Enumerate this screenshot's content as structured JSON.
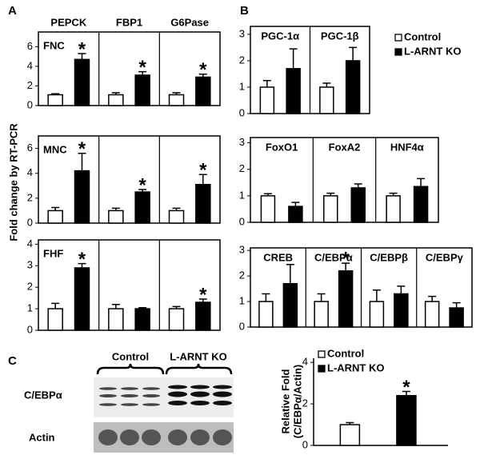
{
  "chart_data": [
    {
      "type": "bar",
      "panel": "A",
      "row_label": "FNC",
      "frame": true,
      "categories": [
        "PEPCK",
        "FBP1",
        "G6Pase"
      ],
      "series": [
        {
          "color": "#ffffff",
          "values": [
            1.1,
            1.1,
            1.1
          ],
          "errors": [
            0.1,
            0.2,
            0.2
          ]
        },
        {
          "color": "#000000",
          "values": [
            4.7,
            3.1,
            2.9
          ],
          "errors": [
            0.6,
            0.35,
            0.3
          ],
          "annotations": [
            "*",
            "*",
            "*"
          ]
        }
      ],
      "ylim": [
        0,
        7.5
      ],
      "yticks": [
        0,
        2,
        4,
        6
      ]
    },
    {
      "type": "bar",
      "row_label": "MNC",
      "ylabel": "Fold change by RT-PCR",
      "frame": true,
      "categories": [
        null,
        null,
        null
      ],
      "series": [
        {
          "color": "#ffffff",
          "values": [
            1.0,
            1.0,
            1.0
          ],
          "errors": [
            0.25,
            0.2,
            0.2
          ]
        },
        {
          "color": "#000000",
          "values": [
            4.2,
            2.5,
            3.1
          ],
          "errors": [
            1.4,
            0.2,
            0.8
          ],
          "annotations": [
            "*",
            "*",
            "*"
          ]
        }
      ],
      "ylim": [
        0,
        7
      ],
      "yticks": [
        0,
        2,
        4,
        6
      ]
    },
    {
      "type": "bar",
      "row_label": "FHF",
      "frame": true,
      "categories": [
        null,
        null,
        null
      ],
      "series": [
        {
          "color": "#ffffff",
          "values": [
            1.0,
            1.0,
            1.0
          ],
          "errors": [
            0.25,
            0.2,
            0.1
          ]
        },
        {
          "color": "#000000",
          "values": [
            2.9,
            1.0,
            1.3
          ],
          "errors": [
            0.2,
            0.05,
            0.15
          ],
          "annotations": [
            "*",
            null,
            "*"
          ]
        }
      ],
      "ylim": [
        0,
        4.2
      ],
      "yticks": [
        0,
        1,
        2,
        3,
        4
      ]
    },
    {
      "type": "bar",
      "panel": "B",
      "frame": true,
      "legend": "right",
      "categories": [
        "PGC-1α",
        "PGC-1β"
      ],
      "series": [
        {
          "name": "Control",
          "color": "#ffffff",
          "values": [
            1.0,
            1.0
          ],
          "errors": [
            0.25,
            0.15
          ]
        },
        {
          "name": "L-ARNT KO",
          "color": "#000000",
          "values": [
            1.7,
            2.0
          ],
          "errors": [
            0.75,
            0.5
          ]
        }
      ],
      "ylim": [
        0,
        3.3
      ],
      "yticks": [
        0,
        1,
        2,
        3
      ]
    },
    {
      "type": "bar",
      "frame": true,
      "categories": [
        "FoxO1",
        "FoxA2",
        "HNF4α"
      ],
      "series": [
        {
          "color": "#ffffff",
          "values": [
            1.0,
            1.0,
            1.0
          ],
          "errors": [
            0.08,
            0.1,
            0.1
          ]
        },
        {
          "color": "#000000",
          "values": [
            0.6,
            1.3,
            1.35
          ],
          "errors": [
            0.15,
            0.15,
            0.3
          ]
        }
      ],
      "ylim": [
        0,
        3.2
      ],
      "yticks": [
        0,
        1,
        2,
        3
      ]
    },
    {
      "type": "bar",
      "frame": true,
      "categories": [
        "CREB",
        "C/EBPα",
        "C/EBPβ",
        "C/EBPγ"
      ],
      "series": [
        {
          "color": "#ffffff",
          "values": [
            1.0,
            1.0,
            1.0,
            1.0
          ],
          "errors": [
            0.3,
            0.3,
            0.45,
            0.2
          ]
        },
        {
          "color": "#000000",
          "values": [
            1.7,
            2.2,
            1.3,
            0.75
          ],
          "errors": [
            0.75,
            0.3,
            0.3,
            0.2
          ],
          "annotations": [
            null,
            "*",
            null,
            null
          ]
        }
      ],
      "ylim": [
        0,
        3.1
      ],
      "yticks": [
        0,
        1,
        2,
        3
      ]
    },
    {
      "type": "blot",
      "panel": "C",
      "groups": [
        "Control",
        "L-ARNT KO"
      ],
      "rows": [
        "C/EBPα",
        "Actin"
      ]
    },
    {
      "type": "bar",
      "frame": false,
      "legend": "top",
      "ylabel": [
        "Relative Fold",
        "(C/EBPα/Actin)"
      ],
      "categories": [
        null
      ],
      "series": [
        {
          "name": "Control",
          "color": "#ffffff",
          "values": [
            1.0
          ],
          "errors": [
            0.1
          ]
        },
        {
          "name": "L-ARNT KO",
          "color": "#000000",
          "values": [
            2.4
          ],
          "errors": [
            0.2
          ],
          "annotations": [
            "*"
          ]
        }
      ],
      "ylim": [
        0,
        4.2
      ],
      "yticks": [
        0,
        2,
        4
      ]
    }
  ]
}
